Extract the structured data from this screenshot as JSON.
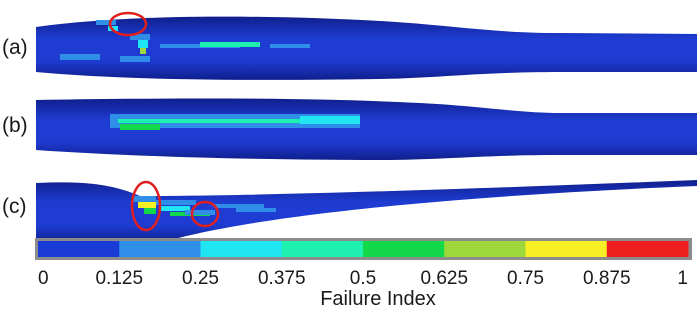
{
  "panels": [
    {
      "label": "(a)"
    },
    {
      "label": "(b)"
    },
    {
      "label": "(c)"
    }
  ],
  "colorbar": {
    "title": "Failure Index",
    "ticks": [
      "0",
      "0.125",
      "0.25",
      "0.375",
      "0.5",
      "0.625",
      "0.75",
      "0.875",
      "1"
    ],
    "colors": [
      "#1a3bd6",
      "#2f8fe8",
      "#1fe6f2",
      "#1ef0b0",
      "#12d84a",
      "#9ed83a",
      "#f6f025",
      "#f01f1f"
    ]
  },
  "highlight_color": "#e01f1f",
  "blade_color": "#1e3cd2"
}
